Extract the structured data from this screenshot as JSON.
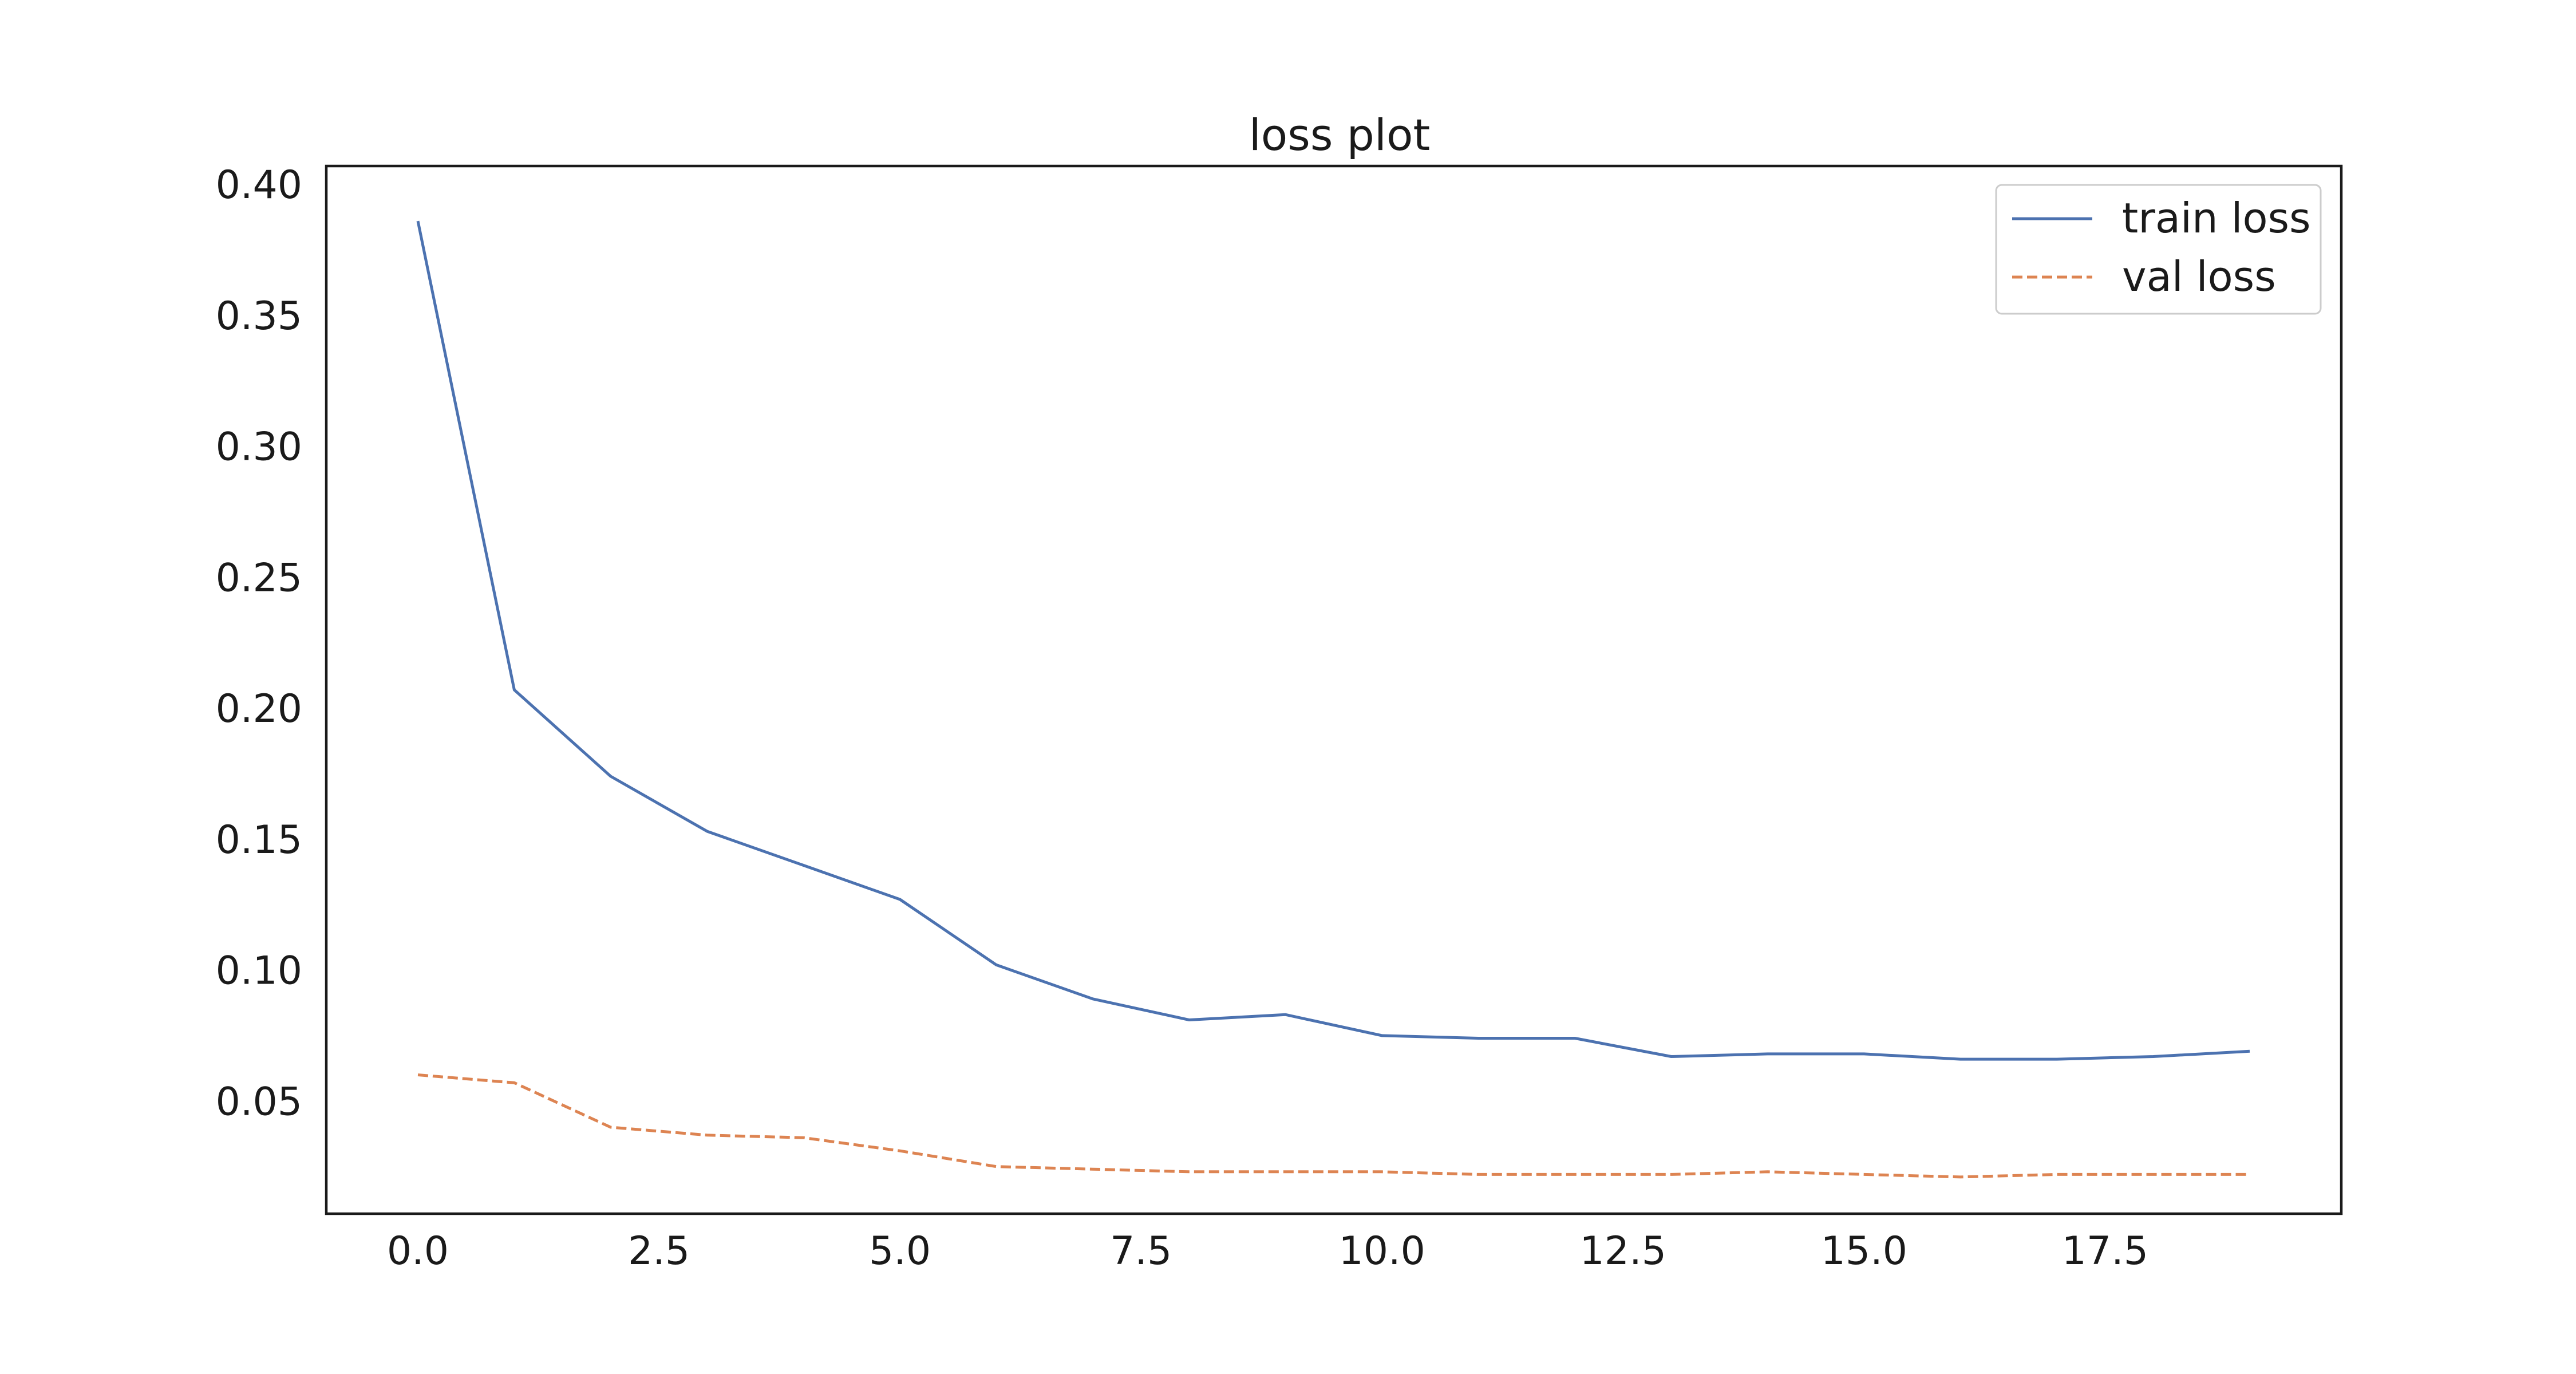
{
  "chart_data": {
    "type": "line",
    "title": "loss plot",
    "xlabel": "",
    "ylabel": "",
    "x": [
      0,
      1,
      2,
      3,
      4,
      5,
      6,
      7,
      8,
      9,
      10,
      11,
      12,
      13,
      14,
      15,
      16,
      17,
      18,
      19
    ],
    "series": [
      {
        "name": "train loss",
        "color": "#4c72b0",
        "dash": "solid",
        "values": [
          0.386,
          0.207,
          0.174,
          0.153,
          0.14,
          0.127,
          0.102,
          0.089,
          0.081,
          0.083,
          0.075,
          0.074,
          0.074,
          0.067,
          0.068,
          0.068,
          0.066,
          0.066,
          0.067,
          0.069
        ]
      },
      {
        "name": "val loss",
        "color": "#dd8452",
        "dash": "dashed",
        "values": [
          0.06,
          0.057,
          0.04,
          0.037,
          0.036,
          0.031,
          0.025,
          0.024,
          0.023,
          0.023,
          0.023,
          0.022,
          0.022,
          0.022,
          0.023,
          0.022,
          0.021,
          0.022,
          0.022,
          0.022
        ]
      }
    ],
    "xlim": [
      -0.95,
      19.95
    ],
    "ylim": [
      0.007,
      0.407
    ],
    "xticks": [
      0.0,
      2.5,
      5.0,
      7.5,
      10.0,
      12.5,
      15.0,
      17.5
    ],
    "xtick_labels": [
      "0.0",
      "2.5",
      "5.0",
      "7.5",
      "10.0",
      "12.5",
      "15.0",
      "17.5"
    ],
    "yticks": [
      0.05,
      0.1,
      0.15,
      0.2,
      0.25,
      0.3,
      0.35,
      0.4
    ],
    "ytick_labels": [
      "0.05",
      "0.10",
      "0.15",
      "0.20",
      "0.25",
      "0.30",
      "0.35",
      "0.40"
    ],
    "grid": false,
    "legend_position": "top-right"
  }
}
